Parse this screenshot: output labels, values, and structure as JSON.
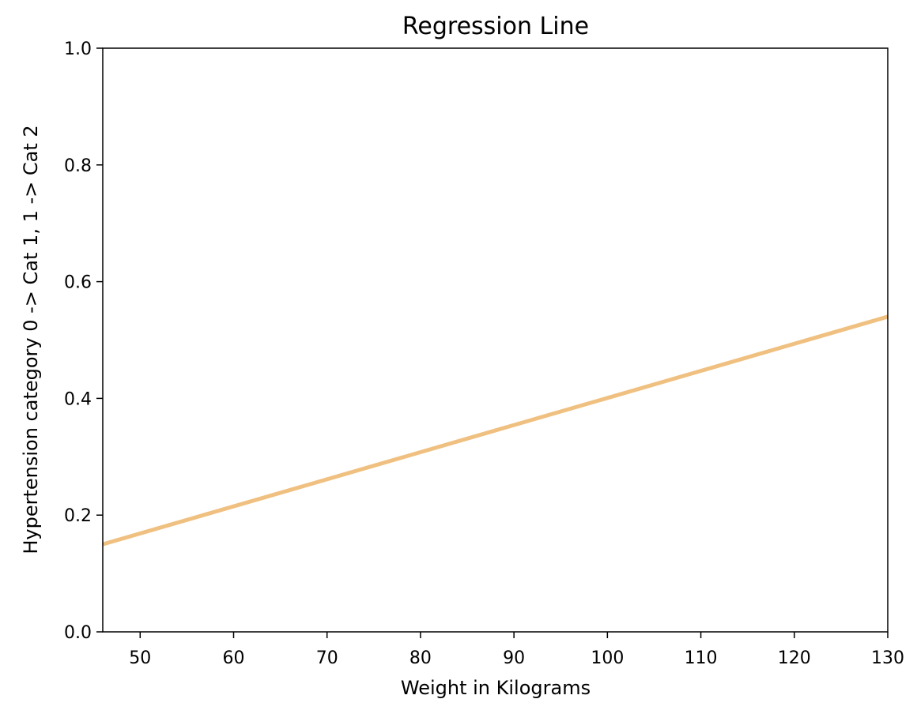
{
  "chart_data": {
    "type": "line",
    "title": "Regression Line",
    "xlabel": "Weight in Kilograms",
    "ylabel": "Hypertension category 0 -> Cat 1, 1 -> Cat 2",
    "xlim": [
      46,
      130
    ],
    "ylim": [
      0.0,
      1.0
    ],
    "xticks": [
      50,
      60,
      70,
      80,
      90,
      100,
      110,
      120,
      130
    ],
    "xtick_labels": [
      "50",
      "60",
      "70",
      "80",
      "90",
      "100",
      "110",
      "120",
      "130"
    ],
    "yticks": [
      0.0,
      0.2,
      0.4,
      0.6,
      0.8,
      1.0
    ],
    "ytick_labels": [
      "0.0",
      "0.2",
      "0.4",
      "0.6",
      "0.8",
      "1.0"
    ],
    "grid": false,
    "legend": "none",
    "series": [
      {
        "color": "#f0c080",
        "x": [
          46,
          130
        ],
        "y": [
          0.15,
          0.54
        ]
      }
    ]
  }
}
